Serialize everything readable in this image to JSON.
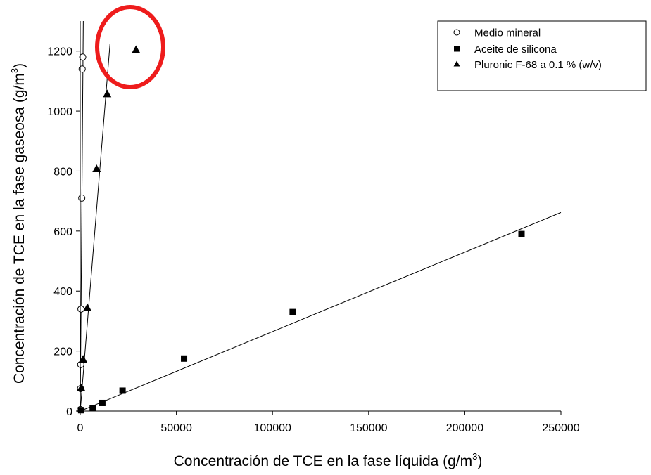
{
  "chart_data": {
    "type": "scatter",
    "title": "",
    "xlabel": "Concentración de TCE en la fase líquida (g/m",
    "xlabel_sup": "3",
    "xlabel_close": ")",
    "ylabel": "Concentración de TCE en la fase gaseosa (g/m",
    "ylabel_sup": "3",
    "ylabel_close": ")",
    "xlim": [
      0,
      250000
    ],
    "ylim": [
      0,
      1300
    ],
    "xticks": [
      {
        "v": 0,
        "label": "0"
      },
      {
        "v": 50000,
        "label": "50000"
      },
      {
        "v": 100000,
        "label": "100000"
      },
      {
        "v": 150000,
        "label": "150000"
      },
      {
        "v": 200000,
        "label": "200000"
      },
      {
        "v": 250000,
        "label": "250000"
      }
    ],
    "yticks": [
      {
        "v": 0,
        "label": "0"
      },
      {
        "v": 200,
        "label": "200"
      },
      {
        "v": 400,
        "label": "400"
      },
      {
        "v": 600,
        "label": "600"
      },
      {
        "v": 800,
        "label": "800"
      },
      {
        "v": 1000,
        "label": "1000"
      },
      {
        "v": 1200,
        "label": "1200"
      }
    ],
    "grid": false,
    "legend_position": "top-right",
    "series": [
      {
        "name": "Medio mineral",
        "marker": "circle-open",
        "points": [
          [
            100,
            5
          ],
          [
            200,
            75
          ],
          [
            300,
            155
          ],
          [
            400,
            340
          ],
          [
            800,
            710
          ],
          [
            1000,
            1140
          ],
          [
            1300,
            1180
          ]
        ],
        "fit_line": [
          [
            0,
            0
          ],
          [
            1600,
            1300
          ]
        ]
      },
      {
        "name": "Aceite de silicona",
        "marker": "square",
        "points": [
          [
            500,
            3
          ],
          [
            6500,
            10
          ],
          [
            11500,
            27
          ],
          [
            22000,
            68
          ],
          [
            54000,
            175
          ],
          [
            110500,
            330
          ],
          [
            229500,
            590
          ]
        ],
        "fit_line": [
          [
            0,
            0
          ],
          [
            250000,
            662
          ]
        ]
      },
      {
        "name": "Pluronic F-68 a 0.1 % (w/v)",
        "marker": "triangle",
        "points": [
          [
            500,
            78
          ],
          [
            1500,
            173
          ],
          [
            3700,
            345
          ],
          [
            8500,
            808
          ],
          [
            14000,
            1058
          ],
          [
            29000,
            1205
          ]
        ],
        "fit_line": [
          [
            0,
            0
          ],
          [
            15500,
            1225
          ]
        ]
      }
    ],
    "annotation": {
      "shape": "ellipse",
      "color": "#ee1c1c",
      "around": [
        29000,
        1205
      ]
    }
  }
}
